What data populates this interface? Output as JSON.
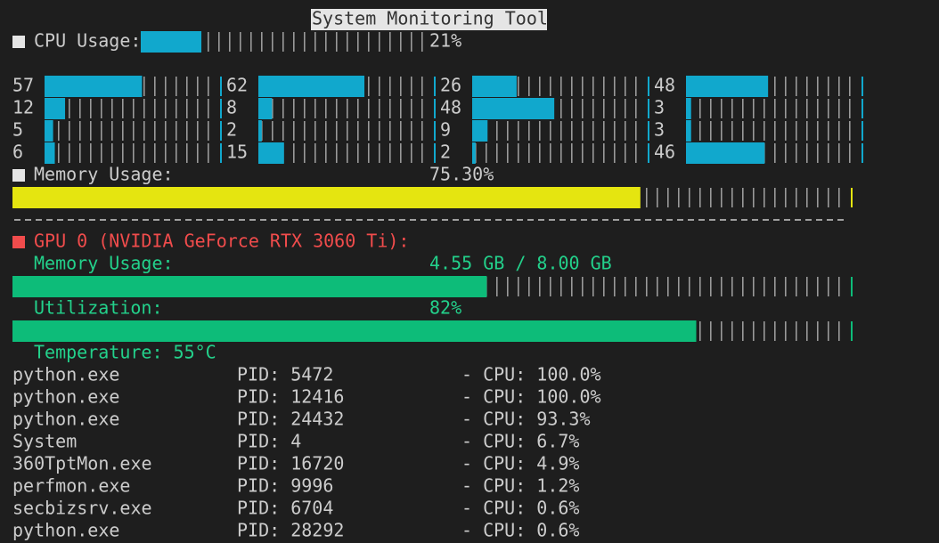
{
  "title": "System Monitoring Tool",
  "cpu": {
    "label": "CPU Usage:",
    "usage": {
      "value": 21,
      "label": "21%"
    },
    "cores": [
      57,
      62,
      26,
      48,
      12,
      8,
      48,
      3,
      5,
      2,
      9,
      3,
      6,
      15,
      2,
      46
    ]
  },
  "memory": {
    "label": "Memory Usage:",
    "usage": {
      "value": 75.3,
      "label": "75.30%"
    }
  },
  "gpu": {
    "label": "GPU 0 (NVIDIA GeForce RTX 3060 Ti):",
    "memory": {
      "label": "Memory Usage:",
      "text": "4.55 GB / 8.00 GB",
      "used": 4.55,
      "total": 8.0
    },
    "utilization": {
      "label": "Utilization:",
      "value": 82,
      "text": "82%"
    },
    "temperature": "Temperature: 55°C"
  },
  "processes": [
    {
      "name": "python.exe",
      "pid": "PID: 5472",
      "cpu": "- CPU: 100.0%"
    },
    {
      "name": "python.exe",
      "pid": "PID: 12416",
      "cpu": "- CPU: 100.0%"
    },
    {
      "name": "python.exe",
      "pid": "PID: 24432",
      "cpu": "- CPU: 93.3%"
    },
    {
      "name": "System",
      "pid": "PID: 4",
      "cpu": "- CPU: 6.7%"
    },
    {
      "name": "360TptMon.exe",
      "pid": "PID: 16720",
      "cpu": "- CPU: 4.9%"
    },
    {
      "name": "perfmon.exe",
      "pid": "PID: 9996",
      "cpu": "- CPU: 1.2%"
    },
    {
      "name": "secbizsrv.exe",
      "pid": "PID: 6704",
      "cpu": "- CPU: 0.6%"
    },
    {
      "name": "python.exe",
      "pid": "PID: 28292",
      "cpu": "- CPU: 0.6%"
    }
  ]
}
